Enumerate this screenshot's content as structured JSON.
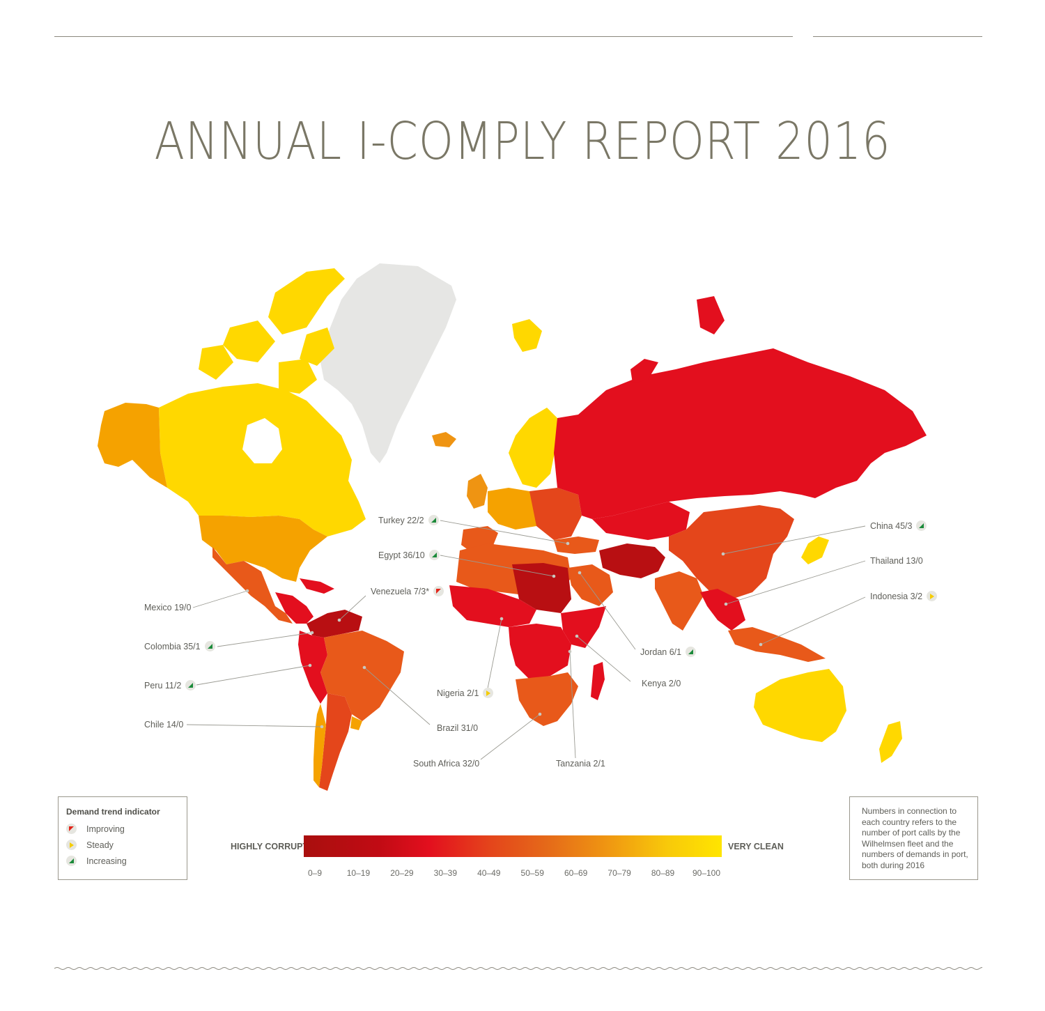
{
  "title": "ANNUAL I-COMPLY REPORT 2016",
  "colors": {
    "very_clean": "#ffd800",
    "clean": "#f5a200",
    "moderate": "#e8591a",
    "corrupt": "#e30f1e",
    "highly_corrupt": "#b80f12",
    "no_data": "#e6e6e4"
  },
  "countries": [
    {
      "label": "Turkey 22/2",
      "trend": "increasing"
    },
    {
      "label": "Egypt 36/10",
      "trend": "increasing"
    },
    {
      "label": "Venezuela 7/3*",
      "trend": "improving"
    },
    {
      "label": "Mexico 19/0",
      "trend": ""
    },
    {
      "label": "Colombia 35/1",
      "trend": "increasing"
    },
    {
      "label": "Peru 11/2",
      "trend": "increasing"
    },
    {
      "label": "Chile 14/0",
      "trend": ""
    },
    {
      "label": "Nigeria 2/1",
      "trend": "steady"
    },
    {
      "label": "Brazil 31/0",
      "trend": ""
    },
    {
      "label": "South Africa 32/0",
      "trend": ""
    },
    {
      "label": "Tanzania 2/1",
      "trend": ""
    },
    {
      "label": "Kenya 2/0",
      "trend": ""
    },
    {
      "label": "Jordan 6/1",
      "trend": "increasing"
    },
    {
      "label": "China 45/3",
      "trend": "increasing"
    },
    {
      "label": "Thailand 13/0",
      "trend": ""
    },
    {
      "label": "Indonesia 3/2",
      "trend": "steady"
    }
  ],
  "legend": {
    "title": "Demand trend indicator",
    "items": [
      {
        "label": "Improving",
        "icon": "improving"
      },
      {
        "label": "Steady",
        "icon": "steady"
      },
      {
        "label": "Increasing",
        "icon": "increasing"
      }
    ]
  },
  "scale": {
    "low_label": "HIGHLY CORRUPT",
    "high_label": "VERY CLEAN",
    "ticks": [
      "0–9",
      "10–19",
      "20–29",
      "30–39",
      "40–49",
      "50–59",
      "60–69",
      "70–79",
      "80–89",
      "90–100"
    ]
  },
  "note": "Numbers in connection to each country refers to the number of port calls by the Wilhelmsen fleet and  the numbers of demands in port, both during 2016"
}
